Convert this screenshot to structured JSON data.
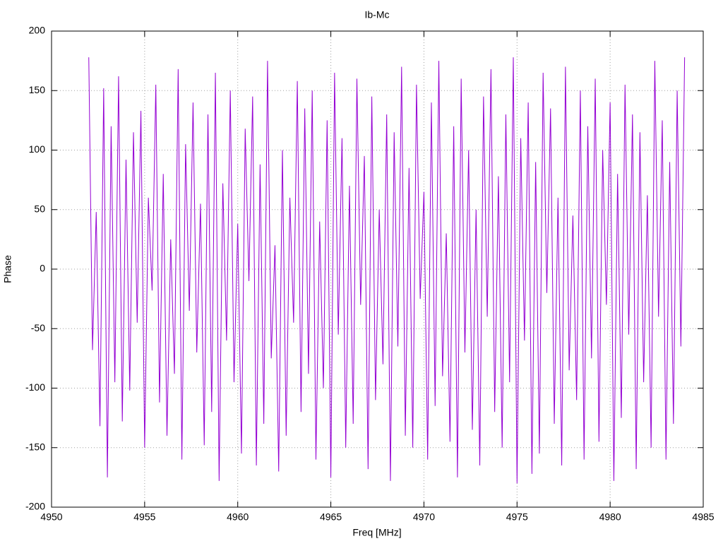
{
  "chart_data": {
    "type": "line",
    "title": "Ib-Mc",
    "x_label": "Freq [MHz]",
    "y_label": "Phase",
    "x": [
      4952,
      4952.2,
      4952.4,
      4952.6,
      4952.8,
      4953,
      4953.2,
      4953.4,
      4953.6,
      4953.8,
      4954,
      4954.2,
      4954.4,
      4954.6,
      4954.8,
      4955,
      4955.2,
      4955.4,
      4955.6,
      4955.8,
      4956,
      4956.2,
      4956.4,
      4956.6,
      4956.8,
      4957,
      4957.2,
      4957.4,
      4957.6,
      4957.8,
      4958,
      4958.2,
      4958.4,
      4958.6,
      4958.8,
      4959,
      4959.2,
      4959.4,
      4959.6,
      4959.8,
      4960,
      4960.2,
      4960.4,
      4960.6,
      4960.8,
      4961,
      4961.2,
      4961.4,
      4961.6,
      4961.8,
      4962,
      4962.2,
      4962.4,
      4962.6,
      4962.8,
      4963,
      4963.2,
      4963.4,
      4963.6,
      4963.8,
      4964,
      4964.2,
      4964.4,
      4964.6,
      4964.8,
      4965,
      4965.2,
      4965.4,
      4965.6,
      4965.8,
      4966,
      4966.2,
      4966.4,
      4966.6,
      4966.8,
      4967,
      4967.2,
      4967.4,
      4967.6,
      4967.8,
      4968,
      4968.2,
      4968.4,
      4968.6,
      4968.8,
      4969,
      4969.2,
      4969.4,
      4969.6,
      4969.8,
      4970,
      4970.2,
      4970.4,
      4970.6,
      4970.8,
      4971,
      4971.2,
      4971.4,
      4971.6,
      4971.8,
      4972,
      4972.2,
      4972.4,
      4972.6,
      4972.8,
      4973,
      4973.2,
      4973.4,
      4973.6,
      4973.8,
      4974,
      4974.2,
      4974.4,
      4974.6,
      4974.8,
      4975,
      4975.2,
      4975.4,
      4975.6,
      4975.8,
      4976,
      4976.2,
      4976.4,
      4976.6,
      4976.8,
      4977,
      4977.2,
      4977.4,
      4977.6,
      4977.8,
      4978,
      4978.2,
      4978.4,
      4978.6,
      4978.8,
      4979,
      4979.2,
      4979.4,
      4979.6,
      4979.8,
      4980,
      4980.2,
      4980.4,
      4980.6,
      4980.8,
      4981,
      4981.2,
      4981.4,
      4981.6,
      4981.8,
      4982,
      4982.2,
      4982.4,
      4982.6,
      4982.8,
      4983,
      4983.2,
      4983.4,
      4983.6,
      4983.8,
      4984
    ],
    "series": [
      {
        "color": "#9400d3",
        "values": [
          178,
          -68,
          48,
          -132,
          152,
          -175,
          120,
          -95,
          162,
          -128,
          92,
          -102,
          115,
          -45,
          133,
          -150,
          60,
          -18,
          155,
          -112,
          80,
          -140,
          25,
          -88,
          168,
          -160,
          105,
          -35,
          140,
          -70,
          55,
          -148,
          130,
          -120,
          165,
          -178,
          72,
          -60,
          150,
          -95,
          38,
          -155,
          118,
          -10,
          145,
          -165,
          88,
          -130,
          175,
          -75,
          20,
          -170,
          100,
          -140,
          60,
          -45,
          158,
          -120,
          135,
          -88,
          150,
          -160,
          40,
          -100,
          125,
          -175,
          165,
          -55,
          110,
          -150,
          70,
          -130,
          160,
          -30,
          95,
          -168,
          145,
          -110,
          50,
          -80,
          130,
          -178,
          115,
          -65,
          170,
          -140,
          85,
          -150,
          155,
          -25,
          65,
          -160,
          140,
          -115,
          175,
          -90,
          30,
          -145,
          120,
          -175,
          160,
          -70,
          100,
          -135,
          50,
          -165,
          145,
          -40,
          168,
          -120,
          78,
          -150,
          130,
          -95,
          178,
          -180,
          110,
          -60,
          140,
          -172,
          90,
          -155,
          165,
          -20,
          135,
          -130,
          60,
          -165,
          170,
          -85,
          45,
          -110,
          150,
          -160,
          120,
          -75,
          160,
          -145,
          100,
          -30,
          140,
          -178,
          80,
          -125,
          155,
          -55,
          130,
          -168,
          115,
          -95,
          62,
          -150,
          175,
          -40,
          125,
          -160,
          90,
          -130,
          150,
          -65,
          178
        ]
      }
    ],
    "xlim": [
      4950,
      4985
    ],
    "xticks": [
      4950,
      4955,
      4960,
      4965,
      4970,
      4975,
      4980,
      4985
    ],
    "ylim": [
      -200,
      200
    ],
    "yticks": [
      -200,
      -150,
      -100,
      -50,
      0,
      50,
      100,
      150,
      200
    ],
    "grid": true
  }
}
